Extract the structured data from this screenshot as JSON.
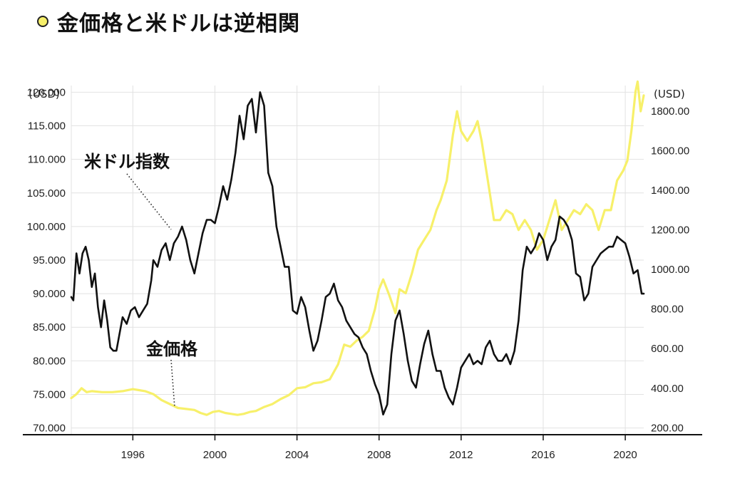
{
  "title": "金価格と米ドルは逆相関",
  "colors": {
    "gold": "#f7f06a",
    "dollar": "#111111",
    "grid": "#e2e2e2",
    "axis": "#111111"
  },
  "chart_data": {
    "type": "line",
    "xlim": [
      1993.0,
      2020.9
    ],
    "x_ticks": [
      "1996",
      "2000",
      "2004",
      "2008",
      "2012",
      "2016",
      "2020"
    ],
    "left_axis": {
      "unit_label": "(USD)",
      "ylim": [
        69.0,
        121.0
      ],
      "ticks": [
        "70.000",
        "75.000",
        "80.000",
        "85.000",
        "90.000",
        "95.000",
        "100.000",
        "105.000",
        "110.000",
        "115.000",
        "120.000"
      ]
    },
    "right_axis": {
      "unit_label": "(USD)",
      "ylim": [
        165,
        1930
      ],
      "ticks": [
        "200.00",
        "400.00",
        "600.00",
        "800.00",
        "1000.00",
        "1200.00",
        "1400.00",
        "1600.00",
        "1800.00"
      ]
    },
    "annotations": [
      {
        "text": "米ドル指数",
        "series": "dollar_index"
      },
      {
        "text": "金価格",
        "series": "gold_price"
      }
    ],
    "series": [
      {
        "name": "米ドル指数",
        "key": "dollar_index",
        "axis": "left",
        "x": [
          1993.0,
          1993.1,
          1993.25,
          1993.4,
          1993.55,
          1993.7,
          1993.85,
          1994.0,
          1994.15,
          1994.3,
          1994.45,
          1994.6,
          1994.75,
          1994.9,
          1995.05,
          1995.2,
          1995.35,
          1995.5,
          1995.7,
          1995.9,
          1996.1,
          1996.3,
          1996.5,
          1996.7,
          1996.9,
          1997.0,
          1997.2,
          1997.4,
          1997.6,
          1997.8,
          1998.0,
          1998.2,
          1998.4,
          1998.6,
          1998.8,
          1999.0,
          1999.2,
          1999.4,
          1999.6,
          1999.8,
          2000.0,
          2000.2,
          2000.4,
          2000.6,
          2000.8,
          2001.0,
          2001.2,
          2001.4,
          2001.6,
          2001.8,
          2002.0,
          2002.2,
          2002.4,
          2002.6,
          2002.8,
          2003.0,
          2003.2,
          2003.4,
          2003.6,
          2003.8,
          2004.0,
          2004.2,
          2004.4,
          2004.6,
          2004.8,
          2005.0,
          2005.2,
          2005.4,
          2005.6,
          2005.8,
          2006.0,
          2006.2,
          2006.4,
          2006.6,
          2006.8,
          2007.0,
          2007.2,
          2007.4,
          2007.6,
          2007.8,
          2008.0,
          2008.2,
          2008.4,
          2008.6,
          2008.8,
          2009.0,
          2009.2,
          2009.4,
          2009.6,
          2009.8,
          2010.0,
          2010.2,
          2010.4,
          2010.6,
          2010.8,
          2011.0,
          2011.2,
          2011.4,
          2011.6,
          2011.8,
          2012.0,
          2012.2,
          2012.4,
          2012.6,
          2012.8,
          2013.0,
          2013.2,
          2013.4,
          2013.6,
          2013.8,
          2014.0,
          2014.2,
          2014.4,
          2014.6,
          2014.8,
          2015.0,
          2015.2,
          2015.4,
          2015.6,
          2015.8,
          2016.0,
          2016.2,
          2016.4,
          2016.6,
          2016.8,
          2017.0,
          2017.2,
          2017.4,
          2017.6,
          2017.8,
          2018.0,
          2018.2,
          2018.4,
          2018.6,
          2018.8,
          2019.0,
          2019.2,
          2019.4,
          2019.6,
          2019.8,
          2020.0,
          2020.2,
          2020.4,
          2020.6,
          2020.8,
          2020.9
        ],
        "y": [
          89.5,
          89.0,
          96.0,
          93.0,
          96.0,
          97.0,
          95.0,
          91.0,
          93.0,
          88.0,
          85.0,
          89.0,
          86.0,
          82.0,
          81.5,
          81.5,
          84.0,
          86.5,
          85.5,
          87.5,
          88.0,
          86.5,
          87.5,
          88.5,
          92.0,
          95.0,
          94.0,
          96.5,
          97.5,
          95.0,
          97.5,
          98.5,
          100.0,
          98.0,
          95.0,
          93.0,
          96.0,
          99.0,
          101.0,
          101.0,
          100.5,
          103.0,
          106.0,
          104.0,
          107.0,
          111.0,
          116.5,
          113.0,
          118.0,
          119.0,
          114.0,
          120.0,
          118.0,
          108.0,
          106.0,
          100.0,
          97.0,
          94.0,
          94.0,
          87.5,
          87.0,
          89.5,
          88.0,
          84.5,
          81.5,
          83.0,
          86.0,
          89.5,
          90.0,
          91.5,
          89.0,
          88.0,
          86.0,
          85.0,
          84.0,
          83.5,
          82.0,
          81.0,
          78.5,
          76.5,
          75.0,
          72.0,
          73.5,
          81.0,
          86.0,
          87.5,
          84.0,
          80.0,
          77.0,
          76.0,
          79.5,
          82.5,
          84.5,
          81.0,
          78.5,
          78.5,
          76.0,
          74.5,
          73.5,
          76.0,
          79.0,
          80.0,
          81.0,
          79.5,
          80.0,
          79.5,
          82.0,
          83.0,
          81.0,
          80.0,
          80.0,
          81.0,
          79.5,
          81.5,
          86.0,
          93.5,
          97.0,
          96.0,
          97.0,
          99.0,
          98.0,
          95.0,
          97.0,
          98.0,
          101.5,
          101.0,
          100.0,
          98.0,
          93.0,
          92.5,
          89.0,
          90.0,
          94.0,
          95.0,
          96.0,
          96.5,
          97.0,
          97.0,
          98.5,
          98.0,
          97.5,
          95.5,
          93.0,
          93.5,
          90.0,
          90.0
        ]
      },
      {
        "name": "金価格",
        "key": "gold_price",
        "axis": "right",
        "x": [
          1993.0,
          1993.25,
          1993.5,
          1993.75,
          1994.0,
          1994.5,
          1995.0,
          1995.5,
          1996.0,
          1996.3,
          1996.6,
          1997.0,
          1997.4,
          1997.8,
          1998.2,
          1998.6,
          1999.0,
          1999.3,
          1999.6,
          1999.9,
          2000.2,
          2000.5,
          2000.8,
          2001.1,
          2001.4,
          2001.7,
          2002.0,
          2002.4,
          2002.8,
          2003.2,
          2003.6,
          2004.0,
          2004.4,
          2004.8,
          2005.2,
          2005.6,
          2006.0,
          2006.3,
          2006.6,
          2006.9,
          2007.2,
          2007.5,
          2007.8,
          2008.0,
          2008.2,
          2008.5,
          2008.8,
          2009.0,
          2009.3,
          2009.6,
          2009.9,
          2010.2,
          2010.5,
          2010.8,
          2011.0,
          2011.3,
          2011.6,
          2011.8,
          2012.0,
          2012.3,
          2012.6,
          2012.8,
          2013.0,
          2013.3,
          2013.6,
          2013.9,
          2014.2,
          2014.5,
          2014.8,
          2015.1,
          2015.4,
          2015.7,
          2016.0,
          2016.3,
          2016.6,
          2016.9,
          2017.2,
          2017.5,
          2017.8,
          2018.1,
          2018.4,
          2018.7,
          2019.0,
          2019.3,
          2019.6,
          2019.9,
          2020.1,
          2020.3,
          2020.5,
          2020.6,
          2020.75,
          2020.9
        ],
        "y": [
          350,
          370,
          400,
          380,
          385,
          380,
          380,
          385,
          395,
          390,
          385,
          370,
          340,
          320,
          300,
          295,
          290,
          275,
          265,
          280,
          285,
          275,
          270,
          265,
          270,
          280,
          285,
          305,
          320,
          345,
          365,
          400,
          405,
          425,
          430,
          445,
          520,
          620,
          610,
          640,
          660,
          690,
          800,
          900,
          950,
          870,
          780,
          900,
          880,
          980,
          1100,
          1150,
          1200,
          1300,
          1350,
          1450,
          1680,
          1800,
          1700,
          1650,
          1700,
          1750,
          1650,
          1450,
          1250,
          1250,
          1300,
          1280,
          1200,
          1250,
          1200,
          1100,
          1150,
          1250,
          1350,
          1200,
          1250,
          1300,
          1280,
          1330,
          1300,
          1200,
          1300,
          1300,
          1450,
          1500,
          1550,
          1700,
          1900,
          1950,
          1800,
          1880
        ]
      }
    ]
  }
}
